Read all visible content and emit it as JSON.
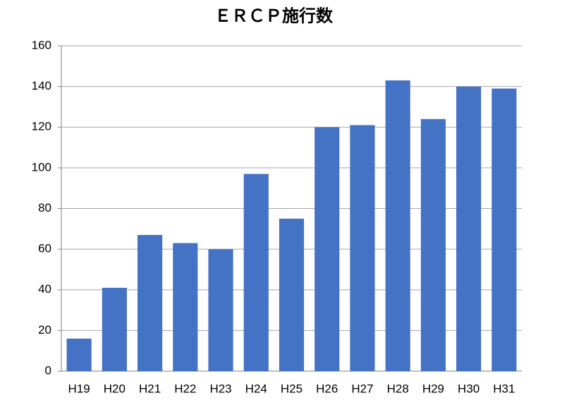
{
  "chart_data": {
    "type": "bar",
    "title": "ＥＲＣＰ施行数",
    "categories": [
      "H19",
      "H20",
      "H21",
      "H22",
      "H23",
      "H24",
      "H25",
      "H26",
      "H27",
      "H28",
      "H29",
      "H30",
      "H31"
    ],
    "values": [
      16,
      41,
      67,
      63,
      60,
      97,
      75,
      120,
      121,
      143,
      124,
      140,
      139
    ],
    "color": "#4472c4",
    "ylim": [
      0,
      160
    ],
    "yticks": [
      0,
      20,
      40,
      60,
      80,
      100,
      120,
      140,
      160
    ],
    "grid": true
  }
}
